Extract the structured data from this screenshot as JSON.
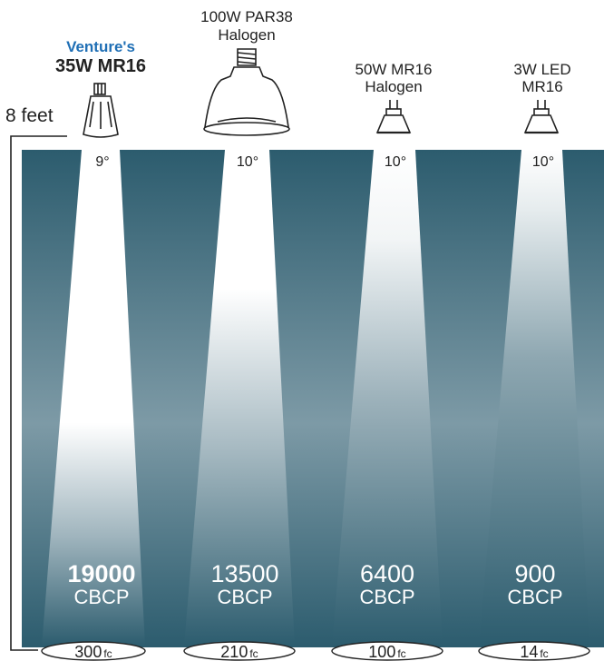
{
  "distance_label": "8 feet",
  "colors": {
    "accent_blue": "#1f6fb5",
    "beam_dark": "#2c5c6e",
    "beam_light": "#ffffff",
    "text_dark": "#222222"
  },
  "lamps": [
    {
      "brand": "Venture's",
      "name": "35W MR16",
      "name_line2": "",
      "icon": "venture-mr16-lamp-icon",
      "beam_angle": "9°",
      "cbcp_value": "19000",
      "cbcp_unit": "CBCP",
      "fc_value": "300",
      "fc_unit": "fc",
      "highlight": true
    },
    {
      "brand": "",
      "name": "100W PAR38",
      "name_line2": "Halogen",
      "icon": "par38-halogen-bulb-icon",
      "beam_angle": "10°",
      "cbcp_value": "13500",
      "cbcp_unit": "CBCP",
      "fc_value": "210",
      "fc_unit": "fc",
      "highlight": false
    },
    {
      "brand": "",
      "name": "50W MR16",
      "name_line2": "Halogen",
      "icon": "mr16-halogen-lamp-icon",
      "beam_angle": "10°",
      "cbcp_value": "6400",
      "cbcp_unit": "CBCP",
      "fc_value": "100",
      "fc_unit": "fc",
      "highlight": false
    },
    {
      "brand": "",
      "name": "3W LED",
      "name_line2": "MR16",
      "icon": "led-mr16-lamp-icon",
      "beam_angle": "10°",
      "cbcp_value": "900",
      "cbcp_unit": "CBCP",
      "fc_value": "14",
      "fc_unit": "fc",
      "highlight": false
    }
  ]
}
